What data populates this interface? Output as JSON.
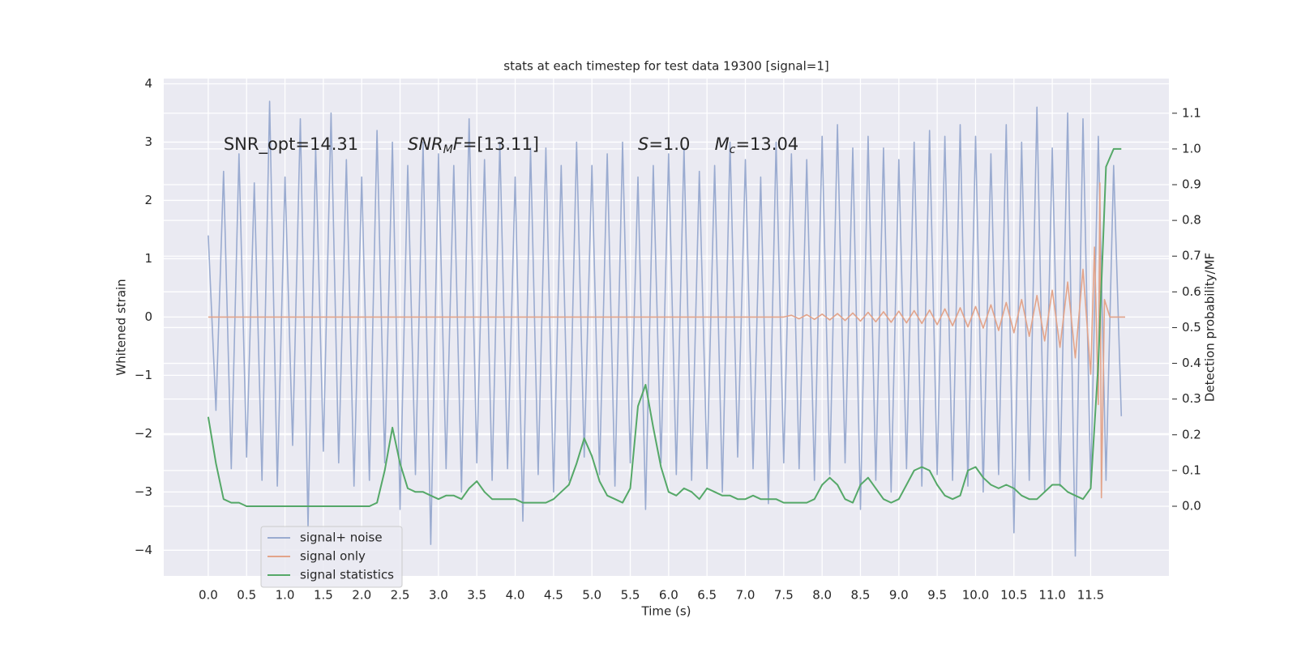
{
  "chart_data": {
    "type": "line",
    "title": "stats at each timestep for test data 19300 [signal=1]",
    "xlabel": "Time (s)",
    "ylabel": "Whitened strain",
    "y2label": "Detection probability/MF",
    "xlim": [
      -0.58,
      12.52
    ],
    "ylim": [
      -4.44,
      4.09
    ],
    "y2lim": [
      -0.195,
      1.197
    ],
    "grid": true,
    "legend": "lower left",
    "xticks": [
      {
        "value": 0,
        "label": "0.0"
      },
      {
        "value": 0.5,
        "label": "0.5"
      },
      {
        "value": 1,
        "label": "1.0"
      },
      {
        "value": 1.5,
        "label": "1.5"
      },
      {
        "value": 2,
        "label": "2.0"
      },
      {
        "value": 2.5,
        "label": "2.5"
      },
      {
        "value": 3,
        "label": "3.0"
      },
      {
        "value": 3.5,
        "label": "3.5"
      },
      {
        "value": 4,
        "label": "4.0"
      },
      {
        "value": 4.5,
        "label": "4.5"
      },
      {
        "value": 5,
        "label": "5.0"
      },
      {
        "value": 5.5,
        "label": "5.5"
      },
      {
        "value": 6,
        "label": "6.0"
      },
      {
        "value": 6.5,
        "label": "6.5"
      },
      {
        "value": 7,
        "label": "7.0"
      },
      {
        "value": 7.5,
        "label": "7.5"
      },
      {
        "value": 8,
        "label": "8.0"
      },
      {
        "value": 8.5,
        "label": "8.5"
      },
      {
        "value": 9,
        "label": "9.0"
      },
      {
        "value": 9.5,
        "label": "9.5"
      },
      {
        "value": 10,
        "label": "10.0"
      },
      {
        "value": 10.5,
        "label": "10.5"
      },
      {
        "value": 11,
        "label": "11.0"
      },
      {
        "value": 11.5,
        "label": "11.5"
      }
    ],
    "yticks": [
      {
        "value": -4,
        "label": "−4"
      },
      {
        "value": -3,
        "label": "−3"
      },
      {
        "value": -2,
        "label": "−2"
      },
      {
        "value": -1,
        "label": "−1"
      },
      0,
      1,
      2,
      3,
      4
    ],
    "y2ticks": [
      {
        "value": 0,
        "label": "0.0"
      },
      0.1,
      0.2,
      0.3,
      0.4,
      0.5,
      0.6,
      0.7,
      0.8,
      0.9,
      {
        "value": 1,
        "label": "1.0"
      },
      1.1
    ],
    "annotations": [
      {
        "x": 0.2,
        "y": 2.95,
        "parts": [
          {
            "text": "SNR_opt=14.31",
            "style": "normal"
          }
        ]
      },
      {
        "x": 2.6,
        "y": 2.95,
        "parts": [
          {
            "text": "SNR",
            "style": "italic"
          },
          {
            "text": "M",
            "style": "sub"
          },
          {
            "text": "F",
            "style": "italic"
          },
          {
            "text": "=[13.11]",
            "style": "normal"
          }
        ]
      },
      {
        "x": 5.6,
        "y": 2.95,
        "parts": [
          {
            "text": "S",
            "style": "italic"
          },
          {
            "text": "=1.0",
            "style": "normal"
          }
        ]
      },
      {
        "x": 6.6,
        "y": 2.95,
        "parts": [
          {
            "text": "M",
            "style": "italic"
          },
          {
            "text": "c",
            "style": "sub"
          },
          {
            "text": "=13.04",
            "style": "normal"
          }
        ]
      }
    ],
    "x": [
      0,
      0.1,
      0.2,
      0.3,
      0.4,
      0.5,
      0.6,
      0.7,
      0.8,
      0.9,
      1,
      1.1,
      1.2,
      1.3,
      1.4,
      1.5,
      1.6,
      1.7,
      1.8,
      1.9,
      2,
      2.1,
      2.2,
      2.3,
      2.4,
      2.5,
      2.6,
      2.7,
      2.8,
      2.9,
      3,
      3.1,
      3.2,
      3.3,
      3.4,
      3.5,
      3.6,
      3.7,
      3.8,
      3.9,
      4,
      4.1,
      4.2,
      4.3,
      4.4,
      4.5,
      4.6,
      4.7,
      4.8,
      4.9,
      5,
      5.1,
      5.2,
      5.3,
      5.4,
      5.5,
      5.6,
      5.7,
      5.8,
      5.9,
      6,
      6.1,
      6.2,
      6.3,
      6.4,
      6.5,
      6.6,
      6.7,
      6.8,
      6.9,
      7,
      7.1,
      7.2,
      7.3,
      7.4,
      7.5,
      7.6,
      7.7,
      7.8,
      7.9,
      8,
      8.1,
      8.2,
      8.3,
      8.4,
      8.5,
      8.6,
      8.7,
      8.8,
      8.9,
      9,
      9.1,
      9.2,
      9.3,
      9.4,
      9.5,
      9.6,
      9.7,
      9.8,
      9.9,
      10,
      10.1,
      10.2,
      10.3,
      10.4,
      10.5,
      10.6,
      10.7,
      10.8,
      10.9,
      11,
      11.1,
      11.2,
      11.3,
      11.4,
      11.5,
      11.6,
      11.7,
      11.8,
      11.9
    ],
    "series": [
      {
        "name": "signal+ noise",
        "color": "#9aabd0",
        "values": [
          1.4,
          -1.6,
          2.5,
          -2.6,
          2.8,
          -2.4,
          2.3,
          -2.8,
          3.7,
          -2.9,
          2.4,
          -2.2,
          3.4,
          -3.6,
          2.9,
          -2.3,
          3.5,
          -2.5,
          2.7,
          -2.9,
          2.4,
          -2.8,
          3.2,
          -2.5,
          3.0,
          -3.3,
          2.6,
          -2.7,
          3.0,
          -3.9,
          2.8,
          -2.6,
          2.6,
          -3.0,
          3.4,
          -2.5,
          2.7,
          -2.8,
          3.0,
          -2.6,
          2.4,
          -3.5,
          2.9,
          -2.7,
          2.9,
          -3.0,
          2.6,
          -2.8,
          3.0,
          -2.4,
          2.6,
          -2.7,
          2.8,
          -2.9,
          3.0,
          -2.5,
          2.4,
          -3.3,
          2.6,
          -2.5,
          2.8,
          -2.7,
          2.9,
          -2.8,
          2.5,
          -2.6,
          2.6,
          -3.0,
          3.0,
          -2.4,
          2.7,
          -2.6,
          2.4,
          -3.2,
          3.0,
          -2.5,
          2.8,
          -2.6,
          2.7,
          -2.8,
          3.1,
          -2.7,
          3.3,
          -2.5,
          2.9,
          -3.3,
          3.1,
          -2.8,
          2.9,
          -3.0,
          2.7,
          -2.6,
          3.0,
          -2.9,
          3.2,
          -2.7,
          3.1,
          -2.8,
          3.3,
          -2.9,
          3.1,
          -3.0,
          2.8,
          -2.7,
          3.3,
          -3.7,
          3.0,
          -2.8,
          3.6,
          -3.0,
          2.9,
          -2.9,
          3.5,
          -4.1,
          3.4,
          -2.9,
          3.1,
          -2.8,
          2.6,
          -1.7
        ]
      },
      {
        "name": "signal only",
        "color": "#e3a48a",
        "x": [
          0,
          7.5,
          7.6,
          7.7,
          7.8,
          7.9,
          8,
          8.1,
          8.2,
          8.3,
          8.4,
          8.5,
          8.6,
          8.7,
          8.8,
          8.9,
          9,
          9.1,
          9.2,
          9.3,
          9.4,
          9.5,
          9.6,
          9.7,
          9.8,
          9.9,
          10,
          10.1,
          10.2,
          10.3,
          10.4,
          10.5,
          10.6,
          10.7,
          10.8,
          10.9,
          11,
          11.1,
          11.2,
          11.3,
          11.4,
          11.5,
          11.55,
          11.6,
          11.62,
          11.64,
          11.68,
          11.75,
          11.95
        ],
        "values": [
          0,
          0,
          0.03,
          -0.03,
          0.04,
          -0.04,
          0.05,
          -0.05,
          0.06,
          -0.06,
          0.07,
          -0.07,
          0.08,
          -0.08,
          0.09,
          -0.09,
          0.1,
          -0.1,
          0.11,
          -0.11,
          0.12,
          -0.13,
          0.14,
          -0.15,
          0.16,
          -0.17,
          0.18,
          -0.19,
          0.21,
          -0.23,
          0.25,
          -0.27,
          0.3,
          -0.33,
          0.37,
          -0.41,
          0.46,
          -0.52,
          0.6,
          -0.7,
          0.82,
          -0.98,
          1.2,
          -1.5,
          2.3,
          -3.1,
          0.3,
          0,
          0
        ]
      },
      {
        "name": "signal statistics",
        "color": "#55a868",
        "axis": "y2",
        "values": [
          0.25,
          0.12,
          0.02,
          0.01,
          0.01,
          0,
          0,
          0,
          0,
          0,
          0,
          0,
          0,
          0,
          0,
          0,
          0,
          0,
          0,
          0,
          0,
          0,
          0.01,
          0.1,
          0.22,
          0.12,
          0.05,
          0.04,
          0.04,
          0.03,
          0.02,
          0.03,
          0.03,
          0.02,
          0.05,
          0.07,
          0.04,
          0.02,
          0.02,
          0.02,
          0.02,
          0.01,
          0.01,
          0.01,
          0.01,
          0.02,
          0.04,
          0.06,
          0.12,
          0.19,
          0.14,
          0.07,
          0.03,
          0.02,
          0.01,
          0.05,
          0.28,
          0.34,
          0.22,
          0.11,
          0.04,
          0.03,
          0.05,
          0.04,
          0.02,
          0.05,
          0.04,
          0.03,
          0.03,
          0.02,
          0.02,
          0.03,
          0.02,
          0.02,
          0.02,
          0.01,
          0.01,
          0.01,
          0.01,
          0.02,
          0.06,
          0.08,
          0.06,
          0.02,
          0.01,
          0.06,
          0.08,
          0.05,
          0.02,
          0.01,
          0.02,
          0.06,
          0.1,
          0.11,
          0.1,
          0.06,
          0.03,
          0.02,
          0.03,
          0.1,
          0.11,
          0.08,
          0.06,
          0.05,
          0.06,
          0.05,
          0.03,
          0.02,
          0.02,
          0.04,
          0.06,
          0.06,
          0.04,
          0.03,
          0.02,
          0.05,
          0.4,
          0.95,
          1.0,
          1.0
        ]
      }
    ]
  }
}
